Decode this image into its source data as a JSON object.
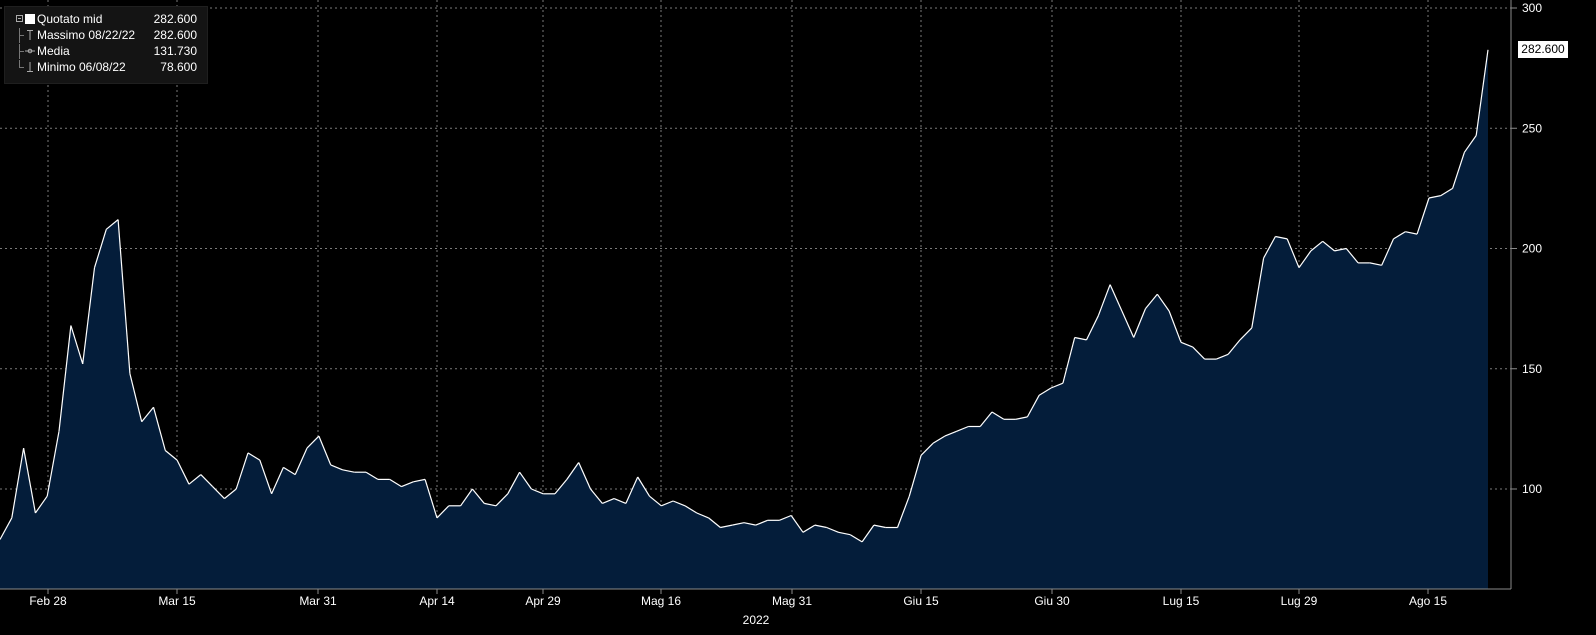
{
  "chart_data": {
    "type": "area",
    "title": "",
    "xlabel": "2022",
    "ylabel": "",
    "ylim": [
      56,
      300
    ],
    "y_ticks": [
      100,
      150,
      200,
      250,
      300
    ],
    "x_ticks": [
      "Feb 28",
      "Mar 15",
      "Mar 31",
      "Apr 14",
      "Apr 29",
      "Mag 16",
      "Mag 31",
      "Giu 15",
      "Giu 30",
      "Lug 15",
      "Lug 29",
      "Ago 15"
    ],
    "grid": true,
    "colors": {
      "line": "#ffffff",
      "fill": "#041d3a",
      "background": "#000000"
    },
    "last_value_label": "282.600",
    "series": [
      {
        "name": "Quotato mid",
        "values": [
          79,
          88,
          117,
          90,
          97,
          124,
          168,
          152,
          192,
          208,
          212,
          148,
          128,
          134,
          116,
          112,
          102,
          106,
          101,
          96,
          100,
          115,
          112,
          98,
          109,
          106,
          117,
          122,
          110,
          108,
          107,
          107,
          104,
          104,
          101,
          103,
          104,
          88,
          93,
          93,
          100,
          94,
          93,
          98,
          107,
          100,
          98,
          98,
          104,
          111,
          100,
          94,
          96,
          94,
          105,
          97,
          93,
          95,
          93,
          90,
          88,
          84,
          85,
          86,
          85,
          87,
          87,
          89,
          82,
          85,
          84,
          82,
          81,
          78,
          85,
          84,
          84,
          97,
          114,
          119,
          122,
          124,
          126,
          126,
          132,
          129,
          129,
          130,
          139,
          142,
          144,
          163,
          162,
          172,
          185,
          174,
          163,
          175,
          181,
          174,
          161,
          159,
          154,
          154,
          156,
          162,
          167,
          196,
          205,
          204,
          192,
          199,
          203,
          199,
          200,
          194,
          194,
          193,
          204,
          207,
          206,
          221,
          222,
          225,
          240,
          247,
          282.6
        ]
      }
    ]
  },
  "legend": {
    "items": [
      {
        "label": "Quotato mid",
        "value": "282.600"
      },
      {
        "label": "Massimo 08/22/22",
        "value": "282.600"
      },
      {
        "label": "Media",
        "value": "131.730"
      },
      {
        "label": "Minimo 06/08/22",
        "value": "78.600"
      }
    ]
  }
}
